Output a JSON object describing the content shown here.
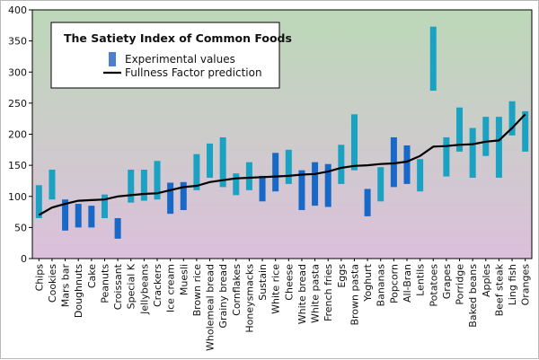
{
  "chart_data": {
    "type": "bar",
    "title": "The Satiety Index of Common Foods",
    "xlabel": "",
    "ylabel": "",
    "ylim": [
      0,
      400
    ],
    "yticks": [
      0,
      50,
      100,
      150,
      200,
      250,
      300,
      350,
      400
    ],
    "grid": false,
    "legend_placement": "top-left",
    "categories": [
      "Chips",
      "Cookies",
      "Mars bar",
      "Doughnuts",
      "Cake",
      "Peanuts",
      "Croissant",
      "Special K",
      "Jellybeans",
      "Crackers",
      "Ice cream",
      "Muesli",
      "Brown rice",
      "Wholemeal bread",
      "Grainy bread",
      "Cornflakes",
      "Honeysmacks",
      "Sustain",
      "White rice",
      "Cheese",
      "White bread",
      "White pasta",
      "French fries",
      "Eggs",
      "Brown pasta",
      "Yoghurt",
      "Bananas",
      "Popcorn",
      "All-Bran",
      "Lentils",
      "Potatoes",
      "Grapes",
      "Porridge",
      "Baked beans",
      "Apples",
      "Beef steak",
      "Ling fish",
      "Oranges"
    ],
    "series": [
      {
        "name": "Experimental values",
        "type": "range-bar",
        "low": [
          65,
          95,
          45,
          50,
          50,
          65,
          32,
          90,
          93,
          95,
          72,
          78,
          110,
          130,
          115,
          102,
          110,
          92,
          108,
          120,
          78,
          85,
          83,
          120,
          142,
          68,
          92,
          115,
          120,
          108,
          270,
          132,
          172,
          130,
          165,
          130,
          198,
          172
        ],
        "high": [
          118,
          143,
          95,
          88,
          85,
          103,
          65,
          143,
          143,
          157,
          122,
          123,
          168,
          185,
          195,
          137,
          155,
          133,
          170,
          175,
          142,
          155,
          152,
          183,
          232,
          112,
          147,
          195,
          182,
          160,
          373,
          195,
          243,
          210,
          228,
          228,
          253,
          237
        ]
      },
      {
        "name": "Fullness Factor prediction",
        "type": "line",
        "values": [
          70,
          82,
          88,
          93,
          94,
          95,
          100,
          102,
          104,
          105,
          110,
          115,
          117,
          123,
          126,
          129,
          130,
          131,
          132,
          133,
          135,
          136,
          140,
          146,
          149,
          150,
          152,
          153,
          156,
          165,
          180,
          181,
          183,
          184,
          188,
          190,
          210,
          232
        ]
      }
    ]
  },
  "colors": {
    "bar_light": "#1ba2c2",
    "bar_dark": "#1768c7",
    "line": "#000000",
    "bg_top": "#bcd8b8",
    "bg_bottom": "#dcc0dc",
    "legend_swatch": "#4d7fd0"
  }
}
